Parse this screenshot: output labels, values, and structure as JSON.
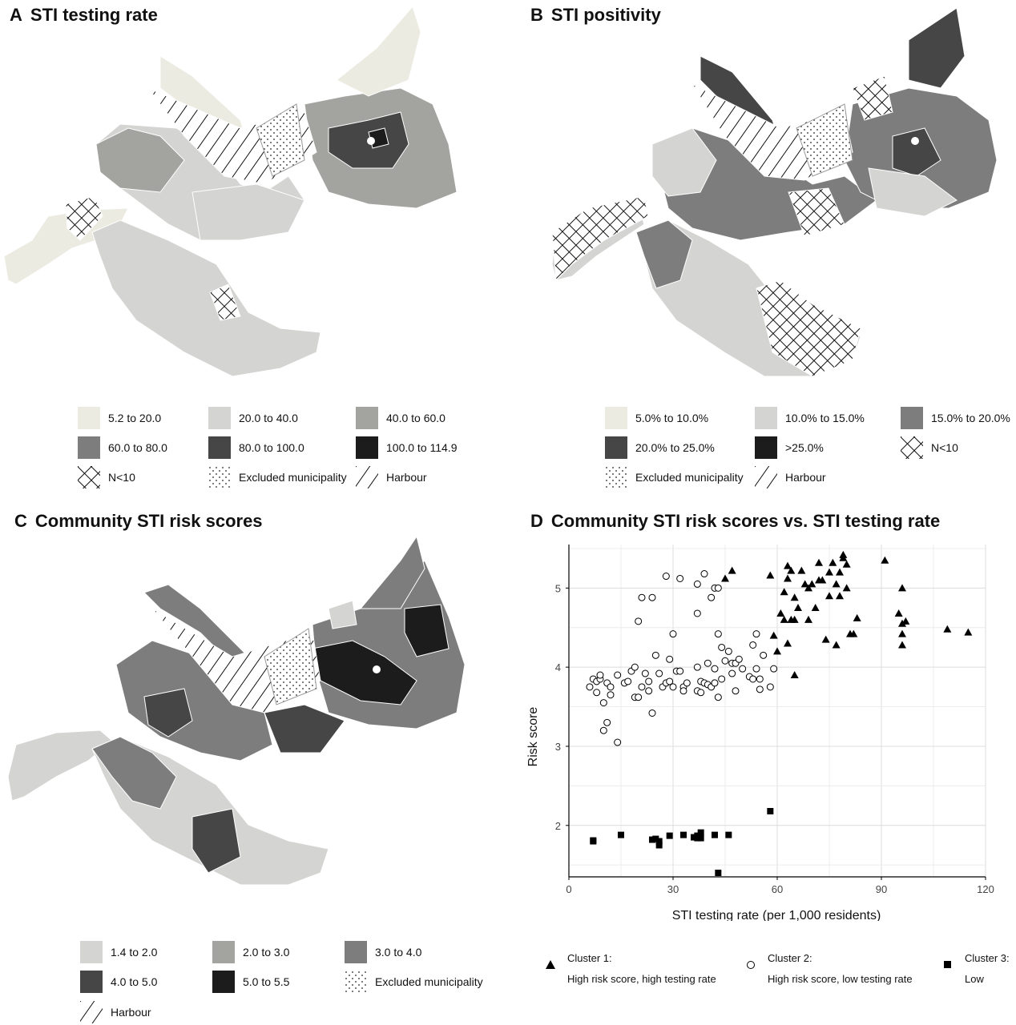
{
  "panels": {
    "A": {
      "letter": "A",
      "title": "STI testing rate"
    },
    "B": {
      "letter": "B",
      "title": "STI positivity"
    },
    "C": {
      "letter": "C",
      "title": "Community STI risk scores"
    },
    "D": {
      "letter": "D",
      "title": "Community STI risk scores vs. STI testing rate"
    }
  },
  "legend_A": [
    {
      "label": "5.2 to 20.0",
      "color": "#ebebe2"
    },
    {
      "label": "20.0 to 40.0",
      "color": "#d4d4d2"
    },
    {
      "label": "40.0 to 60.0",
      "color": "#a3a39f"
    },
    {
      "label": "60.0 to 80.0",
      "color": "#7d7d7d"
    },
    {
      "label": "80.0 to 100.0",
      "color": "#464646"
    },
    {
      "label": "100.0 to 114.9",
      "color": "#1c1c1c"
    },
    {
      "label": "N<10",
      "color": "crosshatch"
    },
    {
      "label": "Excluded municipality",
      "color": "dots"
    },
    {
      "label": "Harbour",
      "color": "diagonal"
    }
  ],
  "legend_B": [
    {
      "label": "5.0% to 10.0%",
      "color": "#ebebe2"
    },
    {
      "label": "10.0% to 15.0%",
      "color": "#d4d4d2"
    },
    {
      "label": "15.0% to 20.0%",
      "color": "#7d7d7d"
    },
    {
      "label": "20.0% to 25.0%",
      "color": "#464646"
    },
    {
      "label": ">25.0%",
      "color": "#1c1c1c"
    },
    {
      "label": "N<10",
      "color": "crosshatch"
    },
    {
      "label": "Excluded municipality",
      "color": "dots"
    },
    {
      "label": "Harbour",
      "color": "diagonal"
    }
  ],
  "legend_C": [
    {
      "label": "1.4 to 2.0",
      "color": "#d4d4d2"
    },
    {
      "label": "2.0 to 3.0",
      "color": "#a3a39f"
    },
    {
      "label": "3.0 to 4.0",
      "color": "#7d7d7d"
    },
    {
      "label": "4.0 to 5.0",
      "color": "#464646"
    },
    {
      "label": "5.0 to 5.5",
      "color": "#1c1c1c"
    },
    {
      "label": "Excluded municipality",
      "color": "dots"
    },
    {
      "label": "Harbour",
      "color": "diagonal"
    }
  ],
  "cluster_legend": [
    {
      "marker": "triangle",
      "line1": "Cluster 1:",
      "line2": "High risk score, high testing rate"
    },
    {
      "marker": "circle",
      "line1": "Cluster 2:",
      "line2": "High risk score, low testing rate"
    },
    {
      "marker": "square",
      "line1": "Cluster 3:",
      "line2": "Low"
    }
  ],
  "chart_data": {
    "type": "scatter",
    "title": "Community STI risk scores vs. STI testing rate",
    "xlabel": "STI testing rate (per 1,000 residents)",
    "ylabel": "Risk score",
    "xlim": [
      0,
      120
    ],
    "ylim": [
      1.35,
      5.55
    ],
    "xticks": [
      0,
      30,
      60,
      90,
      120
    ],
    "yticks": [
      2,
      3,
      4,
      5
    ],
    "grid": true,
    "legend_position": "bottom",
    "series": [
      {
        "name": "Cluster 1: High risk score, high testing rate",
        "marker": "triangle",
        "points": [
          [
            45,
            5.12
          ],
          [
            47,
            5.22
          ],
          [
            58,
            5.16
          ],
          [
            59,
            4.4
          ],
          [
            60,
            4.2
          ],
          [
            61,
            4.68
          ],
          [
            62,
            4.95
          ],
          [
            62,
            4.6
          ],
          [
            63,
            5.28
          ],
          [
            63,
            5.12
          ],
          [
            64,
            5.22
          ],
          [
            64,
            4.6
          ],
          [
            65,
            4.88
          ],
          [
            65,
            4.6
          ],
          [
            65,
            3.9
          ],
          [
            66,
            4.75
          ],
          [
            67,
            5.22
          ],
          [
            68,
            5.05
          ],
          [
            69,
            4.6
          ],
          [
            69,
            5.0
          ],
          [
            70,
            5.05
          ],
          [
            71,
            4.75
          ],
          [
            72,
            5.1
          ],
          [
            72,
            5.32
          ],
          [
            73,
            5.1
          ],
          [
            74,
            4.35
          ],
          [
            75,
            5.2
          ],
          [
            75,
            4.9
          ],
          [
            76,
            5.32
          ],
          [
            77,
            4.28
          ],
          [
            77,
            5.05
          ],
          [
            78,
            4.9
          ],
          [
            78,
            5.2
          ],
          [
            79,
            5.42
          ],
          [
            79,
            5.38
          ],
          [
            80,
            5.3
          ],
          [
            80,
            5.0
          ],
          [
            81,
            4.42
          ],
          [
            82,
            4.42
          ],
          [
            83,
            4.62
          ],
          [
            63,
            4.3
          ],
          [
            91,
            5.35
          ],
          [
            95,
            4.68
          ],
          [
            96,
            4.55
          ],
          [
            96,
            4.28
          ],
          [
            96,
            5.0
          ],
          [
            96,
            4.42
          ],
          [
            97,
            4.58
          ],
          [
            109,
            4.48
          ],
          [
            115,
            4.44
          ]
        ]
      },
      {
        "name": "Cluster 2: High risk score, low testing rate",
        "marker": "circle",
        "points": [
          [
            6,
            3.75
          ],
          [
            7,
            3.85
          ],
          [
            8,
            3.68
          ],
          [
            8,
            3.82
          ],
          [
            9,
            3.85
          ],
          [
            9,
            3.9
          ],
          [
            10,
            3.55
          ],
          [
            10,
            3.2
          ],
          [
            11,
            3.3
          ],
          [
            11,
            3.8
          ],
          [
            12,
            3.75
          ],
          [
            12,
            3.65
          ],
          [
            14,
            3.05
          ],
          [
            14,
            3.9
          ],
          [
            16,
            3.8
          ],
          [
            17,
            3.82
          ],
          [
            18,
            3.95
          ],
          [
            19,
            3.62
          ],
          [
            19,
            4.0
          ],
          [
            20,
            4.58
          ],
          [
            20,
            3.62
          ],
          [
            21,
            3.75
          ],
          [
            21,
            4.88
          ],
          [
            22,
            3.92
          ],
          [
            23,
            3.7
          ],
          [
            23,
            3.82
          ],
          [
            24,
            4.88
          ],
          [
            24,
            3.42
          ],
          [
            25,
            4.15
          ],
          [
            26,
            3.92
          ],
          [
            27,
            3.75
          ],
          [
            28,
            3.8
          ],
          [
            28,
            5.15
          ],
          [
            29,
            3.82
          ],
          [
            29,
            4.1
          ],
          [
            30,
            4.42
          ],
          [
            30,
            3.75
          ],
          [
            31,
            3.95
          ],
          [
            32,
            3.95
          ],
          [
            32,
            5.12
          ],
          [
            33,
            3.75
          ],
          [
            33,
            3.7
          ],
          [
            34,
            3.8
          ],
          [
            37,
            4.0
          ],
          [
            37,
            5.05
          ],
          [
            37,
            3.7
          ],
          [
            37,
            4.68
          ],
          [
            38,
            3.82
          ],
          [
            38,
            3.68
          ],
          [
            39,
            3.8
          ],
          [
            39,
            5.18
          ],
          [
            40,
            4.05
          ],
          [
            40,
            3.78
          ],
          [
            41,
            3.75
          ],
          [
            41,
            4.88
          ],
          [
            42,
            3.8
          ],
          [
            42,
            3.98
          ],
          [
            42,
            5.0
          ],
          [
            43,
            4.42
          ],
          [
            43,
            3.62
          ],
          [
            43,
            5.0
          ],
          [
            44,
            3.85
          ],
          [
            44,
            4.25
          ],
          [
            45,
            4.08
          ],
          [
            46,
            4.2
          ],
          [
            47,
            3.92
          ],
          [
            47,
            4.05
          ],
          [
            48,
            3.7
          ],
          [
            48,
            4.05
          ],
          [
            49,
            4.1
          ],
          [
            50,
            3.98
          ],
          [
            52,
            3.88
          ],
          [
            53,
            4.28
          ],
          [
            53,
            3.85
          ],
          [
            54,
            4.42
          ],
          [
            54,
            3.98
          ],
          [
            55,
            3.72
          ],
          [
            55,
            3.85
          ],
          [
            56,
            4.15
          ],
          [
            58,
            3.75
          ],
          [
            59,
            3.98
          ]
        ]
      },
      {
        "name": "Cluster 3: Low",
        "marker": "square",
        "points": [
          [
            7,
            1.81
          ],
          [
            7,
            1.8
          ],
          [
            15,
            1.88
          ],
          [
            24,
            1.82
          ],
          [
            25,
            1.83
          ],
          [
            26,
            1.75
          ],
          [
            26,
            1.8
          ],
          [
            29,
            1.87
          ],
          [
            33,
            1.88
          ],
          [
            36,
            1.85
          ],
          [
            37,
            1.87
          ],
          [
            37,
            1.84
          ],
          [
            38,
            1.91
          ],
          [
            38,
            1.84
          ],
          [
            42,
            1.88
          ],
          [
            43,
            1.4
          ],
          [
            46,
            1.88
          ],
          [
            58,
            2.18
          ]
        ]
      }
    ]
  }
}
